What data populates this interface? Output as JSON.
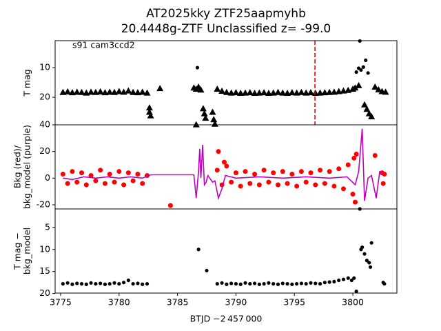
{
  "chart_data": [
    {
      "type": "scatter",
      "title": [
        "AT2025kky  ZTF25aapmyhb",
        "20.4448g-ZTF Unclassified z= -99.0"
      ],
      "annotation": "s91 cam3ccd2",
      "ylabel": [
        "T mag"
      ],
      "xlim": [
        3774.53,
        3803.77
      ],
      "ylim": [
        29.3,
        0.9
      ],
      "yticks": [
        10,
        20
      ],
      "vline": {
        "x": 3796.76,
        "color": "#e8000b",
        "dash": true
      },
      "series": [
        {
          "marker": "triangle",
          "color": "#000000",
          "x": [
            3775.2,
            3775.6,
            3776.0,
            3776.4,
            3776.8,
            3777.2,
            3777.6,
            3778.0,
            3778.4,
            3778.8,
            3779.2,
            3779.6,
            3780.0,
            3780.4,
            3780.8,
            3781.2,
            3781.6,
            3782.0,
            3782.4,
            3782.6,
            3782.6,
            3782.7,
            3783.5,
            3786.4,
            3786.6,
            3786.8,
            3787.0,
            3786.6,
            3787.2,
            3787.3,
            3787.4,
            3788.0,
            3788.1,
            3788.2,
            3788.4,
            3788.8,
            3789.2,
            3789.6,
            3790.0,
            3790.4,
            3790.8,
            3791.2,
            3791.6,
            3792.0,
            3792.4,
            3792.8,
            3793.2,
            3793.6,
            3794.0,
            3794.4,
            3794.8,
            3795.2,
            3795.6,
            3796.0,
            3796.4,
            3796.8,
            3797.2,
            3797.6,
            3798.0,
            3798.4,
            3798.8,
            3799.2,
            3799.6,
            3800.0,
            3800.2,
            3800.5,
            3801.0,
            3801.2,
            3801.4,
            3801.6,
            3801.9,
            3802.2,
            3802.5,
            3802.8
          ],
          "values": [
            18.3,
            18.1,
            18.4,
            18.2,
            18.3,
            18.5,
            18.2,
            18.3,
            18.1,
            18.4,
            18.2,
            18.3,
            18.0,
            18.2,
            17.8,
            18.3,
            18.4,
            18.2,
            18.5,
            23.5,
            25.0,
            26.2,
            17.0,
            16.8,
            17.2,
            16.5,
            17.5,
            29.2,
            23.8,
            25.5,
            27.0,
            25.0,
            27.5,
            29.0,
            17.2,
            17.9,
            18.3,
            18.5,
            18.4,
            18.6,
            18.5,
            18.4,
            18.6,
            18.5,
            18.4,
            18.6,
            18.5,
            18.3,
            18.5,
            18.6,
            18.4,
            18.5,
            18.3,
            18.5,
            18.4,
            18.6,
            18.5,
            18.4,
            18.3,
            18.2,
            18.0,
            17.8,
            17.6,
            17.2,
            16.8,
            16.0,
            22.5,
            24.0,
            25.5,
            26.5,
            16.5,
            17.4,
            18.0,
            18.2
          ]
        },
        {
          "marker": "circle",
          "color": "#000000",
          "x": [
            3786.7,
            3800.3,
            3800.5,
            3800.6,
            3800.7,
            3800.9,
            3801.1,
            3801.3
          ],
          "values": [
            10.0,
            11.5,
            10.2,
            1.0,
            10.8,
            9.8,
            7.5,
            11.8
          ]
        }
      ]
    },
    {
      "type": "scatter",
      "ylabel": [
        "Bkg (red)/",
        "bkg_model (purple)"
      ],
      "xlim": [
        3774.53,
        3803.77
      ],
      "ylim": [
        -23.1,
        40
      ],
      "yticks": [
        -20,
        0,
        20,
        40
      ],
      "series": [
        {
          "marker": "circle",
          "color": "#ff0000",
          "x": [
            3775.2,
            3775.6,
            3776.0,
            3776.4,
            3776.8,
            3777.2,
            3777.6,
            3778.0,
            3778.4,
            3778.8,
            3779.2,
            3779.6,
            3780.0,
            3780.4,
            3780.8,
            3781.2,
            3781.6,
            3782.0,
            3782.4,
            3784.4,
            3788.5,
            3789.0,
            3788.4,
            3788.8,
            3789.2,
            3789.6,
            3790.0,
            3790.4,
            3790.8,
            3791.2,
            3791.6,
            3792.0,
            3792.4,
            3792.8,
            3793.2,
            3793.6,
            3794.0,
            3794.4,
            3794.8,
            3795.2,
            3795.6,
            3796.0,
            3796.4,
            3796.8,
            3797.2,
            3797.6,
            3798.0,
            3798.4,
            3798.8,
            3799.2,
            3799.6,
            3800.0,
            3800.1,
            3800.2,
            3800.3,
            3801.9,
            3802.5,
            3802.6,
            3802.7
          ],
          "values": [
            3,
            -4,
            5,
            -3,
            4,
            -5,
            2,
            -2,
            6,
            -4,
            3,
            -3,
            5,
            -5,
            4,
            -2,
            3,
            -4,
            2,
            -20.5,
            20,
            12,
            6,
            -5,
            9,
            -3,
            4,
            -6,
            5,
            -4,
            3,
            -5,
            6,
            -3,
            4,
            -5,
            5,
            -4,
            3,
            -6,
            5,
            -3,
            4,
            -5,
            6,
            -4,
            5,
            -6,
            7,
            -8,
            10,
            -12,
            15,
            -18,
            18,
            17,
            4,
            -4,
            3
          ]
        },
        {
          "marker": "line",
          "color": "#bf00bf",
          "x": [
            3775.2,
            3776,
            3777,
            3778,
            3779,
            3780,
            3781,
            3782,
            3782.7,
            3786.4,
            3786.6,
            3786.8,
            3786.9,
            3787.0,
            3787.15,
            3787.3,
            3787.45,
            3787.6,
            3788.0,
            3788.2,
            3788.5,
            3788.8,
            3789.1,
            3790,
            3792,
            3794,
            3796,
            3798,
            3799.5,
            3800.2,
            3800.5,
            3800.8,
            3801.0,
            3801.3,
            3801.6,
            3802.0,
            3802.3,
            3802.6
          ],
          "values": [
            0,
            -1,
            1,
            0,
            1,
            0,
            1,
            0,
            2.5,
            2.5,
            -15,
            5,
            22,
            0,
            25,
            -5,
            -3,
            2,
            -3,
            -2,
            -15,
            -8,
            2,
            0,
            1,
            0,
            1,
            0,
            1,
            -5,
            5,
            37,
            -17,
            0,
            2,
            -15,
            5,
            4
          ]
        }
      ]
    },
    {
      "type": "scatter",
      "ylabel": [
        "T mag −",
        "bkg_model"
      ],
      "xlabel": "BTJD −2 457 000",
      "xlim": [
        3774.53,
        3803.77
      ],
      "ylim": [
        19.9,
        0.8
      ],
      "yticks": [
        5,
        10,
        15,
        20
      ],
      "xticks": [
        3775,
        3780,
        3785,
        3790,
        3795,
        3800
      ],
      "series": [
        {
          "marker": "circle",
          "color": "#000000",
          "x": [
            3775.2,
            3775.6,
            3776.0,
            3776.4,
            3776.8,
            3777.2,
            3777.6,
            3778.0,
            3778.4,
            3778.8,
            3779.2,
            3779.6,
            3780.0,
            3780.4,
            3780.8,
            3781.2,
            3781.6,
            3782.0,
            3782.4,
            3786.8,
            3787.5,
            3788.4,
            3788.8,
            3789.2,
            3789.6,
            3790.0,
            3790.4,
            3790.8,
            3791.2,
            3791.6,
            3792.0,
            3792.4,
            3792.8,
            3793.2,
            3793.6,
            3794.0,
            3794.4,
            3794.8,
            3795.2,
            3795.6,
            3796.0,
            3796.4,
            3796.8,
            3797.2,
            3797.6,
            3798.0,
            3798.4,
            3798.8,
            3799.2,
            3799.6,
            3799.9,
            3800.1,
            3800.3,
            3800.6,
            3800.7,
            3800.8,
            3801.0,
            3801.2,
            3801.4,
            3801.6,
            3801.5,
            3802.7,
            3802.6
          ],
          "values": [
            17.8,
            17.6,
            17.9,
            17.7,
            17.8,
            17.9,
            17.6,
            17.8,
            17.7,
            17.9,
            17.8,
            17.6,
            17.8,
            17.5,
            17.0,
            17.8,
            17.7,
            17.9,
            17.8,
            10.0,
            14.8,
            17.8,
            17.6,
            17.9,
            17.7,
            17.8,
            17.9,
            17.6,
            17.8,
            17.7,
            17.9,
            17.8,
            17.6,
            17.8,
            17.9,
            17.7,
            17.8,
            17.9,
            17.8,
            17.7,
            17.8,
            17.6,
            17.7,
            17.8,
            17.5,
            17.4,
            17.3,
            17.0,
            16.8,
            16.5,
            17.0,
            16.5,
            19.5,
            0.8,
            10,
            9.5,
            11,
            12.5,
            13,
            8.5,
            14,
            17.8,
            17.5
          ]
        }
      ]
    }
  ]
}
